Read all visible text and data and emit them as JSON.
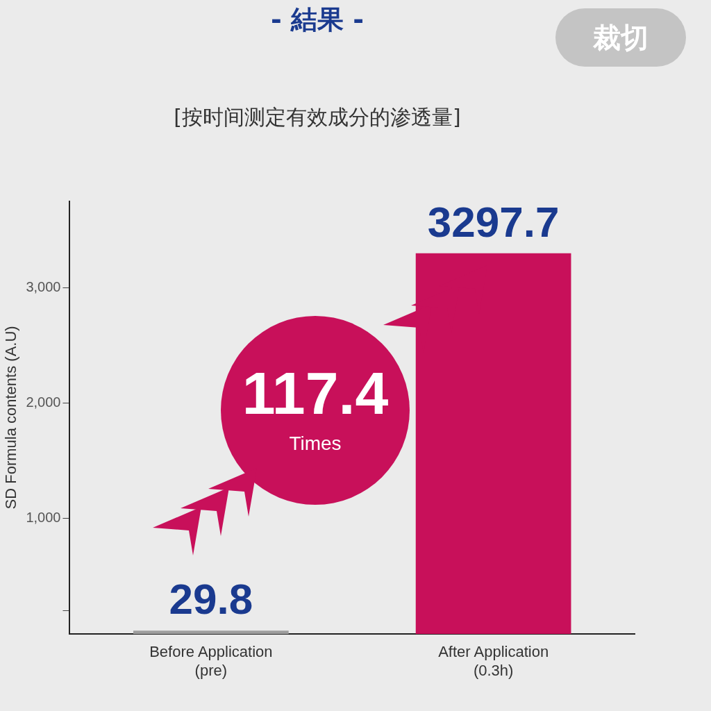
{
  "chart_data": {
    "type": "bar",
    "title": "- 結果 -",
    "subtitle": "[按时间测定有效成分的渗透量]",
    "ylabel": "SD Formula contents (A.U)",
    "categories": [
      "Before Application\n(pre)",
      "After Application\n(0.3h)"
    ],
    "values": [
      29.8,
      3297.7
    ],
    "colors": [
      "#9e9e9e",
      "#c8105a"
    ],
    "ylim": [
      0,
      3750
    ],
    "yticks": [
      {
        "value": 200,
        "label": null
      },
      {
        "value": 1000,
        "label": "1,000"
      },
      {
        "value": 2000,
        "label": "2,000"
      },
      {
        "value": 3000,
        "label": "3,000"
      }
    ],
    "data_labels": true,
    "grid": false,
    "legend": false,
    "annotations": [
      "117.4",
      "Times",
      "裁切"
    ]
  }
}
